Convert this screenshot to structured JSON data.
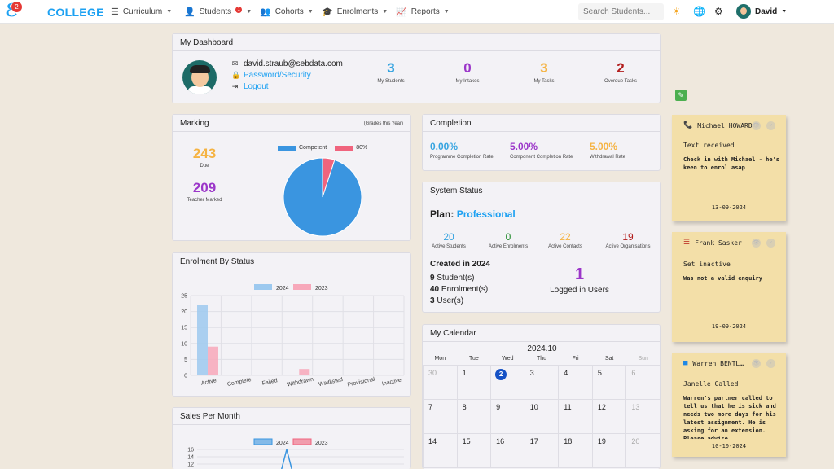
{
  "header": {
    "brand": "COLLEGE",
    "logo_badge": "2",
    "nav": [
      {
        "label": "Curriculum",
        "icon": "menu-icon"
      },
      {
        "label": "Students",
        "icon": "user-icon",
        "badge": "1"
      },
      {
        "label": "Cohorts",
        "icon": "group-icon"
      },
      {
        "label": "Enrolments",
        "icon": "graduation-cap-icon"
      },
      {
        "label": "Reports",
        "icon": "chart-icon"
      }
    ],
    "search_placeholder": "Search Students...",
    "user_name": "David"
  },
  "dashboard": {
    "title": "My Dashboard",
    "email": "david.straub@sebdata.com",
    "password_link": "Password/Security",
    "logout_link": "Logout",
    "stats": [
      {
        "value": "3",
        "label": "My Students",
        "color": "#36a4e0"
      },
      {
        "value": "0",
        "label": "My Intakes",
        "color": "#9b36c9"
      },
      {
        "value": "3",
        "label": "My Tasks",
        "color": "#f5b342"
      },
      {
        "value": "2",
        "label": "Overdue Tasks",
        "color": "#b21d1d"
      }
    ]
  },
  "marking": {
    "title": "Marking",
    "subtitle": "(Grades this Year)",
    "due_value": "243",
    "due_label": "Due",
    "marked_value": "209",
    "marked_label": "Teacher Marked",
    "legend_competent": "Competent",
    "legend_other": "80%",
    "competent_color": "#3a95e0",
    "other_color": "#f0647d"
  },
  "completion": {
    "title": "Completion",
    "items": [
      {
        "value": "0.00%",
        "label": "Programme Completion Rate",
        "color": "#36a4e0"
      },
      {
        "value": "5.00%",
        "label": "Component Completion Rate",
        "color": "#9b36c9"
      },
      {
        "value": "5.00%",
        "label": "Withdrawal Rate",
        "color": "#f5b342"
      }
    ]
  },
  "system_status": {
    "title": "System Status",
    "plan_label": "Plan:",
    "plan_value": "Professional",
    "stats": [
      {
        "value": "20",
        "label": "Active Students",
        "color": "#36a4e0"
      },
      {
        "value": "0",
        "label": "Active Enrolments",
        "color": "#1f8a2a"
      },
      {
        "value": "22",
        "label": "Active Contacts",
        "color": "#f5b342"
      },
      {
        "value": "19",
        "label": "Active Organisations",
        "color": "#b21d1d"
      }
    ],
    "created_title": "Created in 2024",
    "created": [
      {
        "count": "9",
        "label": "Student(s)"
      },
      {
        "count": "40",
        "label": "Enrolment(s)"
      },
      {
        "count": "3",
        "label": "User(s)"
      }
    ],
    "logged_in_value": "1",
    "logged_in_label": "Logged in Users"
  },
  "enrolment_by_status": {
    "title": "Enrolment By Status"
  },
  "sales_per_month": {
    "title": "Sales Per Month"
  },
  "calendar": {
    "title": "My Calendar",
    "month": "2024.10",
    "weekdays": [
      "Mon",
      "Tue",
      "Wed",
      "Thu",
      "Fri",
      "Sat",
      "Sun"
    ],
    "weeks": [
      [
        "30",
        "1",
        "2",
        "3",
        "4",
        "5",
        "6"
      ],
      [
        "7",
        "8",
        "9",
        "10",
        "11",
        "12",
        "13"
      ],
      [
        "14",
        "15",
        "16",
        "17",
        "18",
        "19",
        "20"
      ]
    ],
    "today": "2"
  },
  "notes": [
    {
      "icon": "phone-icon",
      "name": "Michael HOWARD",
      "title": "Text received",
      "body": "Check in with Michael - he's keen to enrol asap",
      "date": "13-09-2024",
      "icon_color": "#8e44ad"
    },
    {
      "icon": "list-icon",
      "name": "Frank Sasker",
      "title": "Set inactive",
      "body": "Was not a valid enquiry",
      "date": "19-09-2024",
      "icon_color": "#c0392b"
    },
    {
      "icon": "chat-icon",
      "name": "Warren BENTL…",
      "title": "Janelle Called",
      "body": "Warren's partner called to tell us that he is sick and needs two more days for his latest assignment. He is asking for an extension. Please advise",
      "date": "10-10-2024",
      "icon_color": "#1e88e5"
    }
  ],
  "chart_data": [
    {
      "type": "pie",
      "title": "",
      "labels": [
        "Competent",
        "80%"
      ],
      "values": [
        95,
        5
      ],
      "colors": [
        "#3a95e0",
        "#f0647d"
      ]
    },
    {
      "type": "bar",
      "title": "Enrolment By Status",
      "categories": [
        "Active",
        "Complete",
        "Failed",
        "Withdrawn",
        "Waitlisted",
        "Provisional",
        "Inactive"
      ],
      "series": [
        {
          "name": "2024",
          "values": [
            22,
            0,
            0,
            0,
            0,
            0,
            0
          ],
          "color": "#9cc9ef"
        },
        {
          "name": "2023",
          "values": [
            9,
            0,
            0,
            2,
            0,
            0,
            0
          ],
          "color": "#f7a8ba"
        }
      ],
      "ylim": [
        0,
        25
      ],
      "yticks": [
        "25",
        "20",
        "15",
        "10",
        "5",
        "0"
      ],
      "grid": true,
      "legend": "top"
    },
    {
      "type": "line",
      "title": "Sales Per Month",
      "series": [
        {
          "name": "2024",
          "color": "#3a95e0"
        },
        {
          "name": "2023",
          "color": "#f0647d"
        }
      ],
      "yticks": [
        "16",
        "14",
        "12"
      ],
      "legend": "top"
    }
  ]
}
